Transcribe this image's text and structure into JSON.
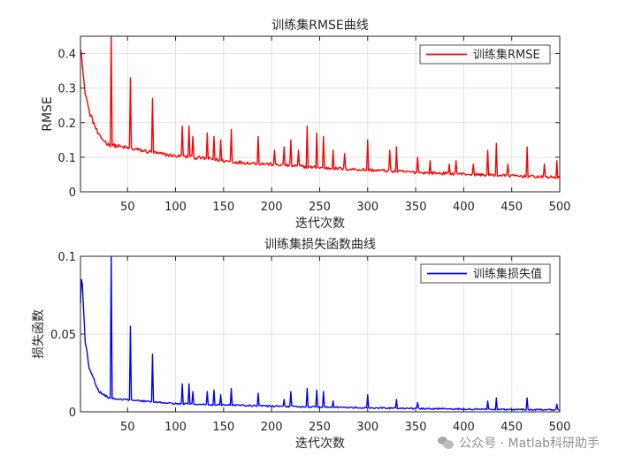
{
  "chart_data": [
    {
      "type": "line",
      "title": "训练集RMSE曲线",
      "xlabel": "迭代次数",
      "ylabel": "RMSE",
      "xlim": [
        1,
        500
      ],
      "ylim": [
        0,
        0.45
      ],
      "xticks": [
        50,
        100,
        150,
        200,
        250,
        300,
        350,
        400,
        450,
        500
      ],
      "yticks": [
        0,
        0.1,
        0.2,
        0.3,
        0.4
      ],
      "ytick_labels": [
        "0",
        "0.1",
        "0.2",
        "0.3",
        "0.4"
      ],
      "grid": true,
      "legend_position": "top-right",
      "color": "#ff0000",
      "series": [
        {
          "name": "训练集RMSE",
          "base": [
            [
              1,
              0.42
            ],
            [
              5,
              0.3
            ],
            [
              10,
              0.23
            ],
            [
              20,
              0.16
            ],
            [
              30,
              0.135
            ],
            [
              40,
              0.13
            ],
            [
              60,
              0.12
            ],
            [
              80,
              0.11
            ],
            [
              100,
              0.102
            ],
            [
              130,
              0.095
            ],
            [
              160,
              0.085
            ],
            [
              200,
              0.078
            ],
            [
              250,
              0.068
            ],
            [
              300,
              0.062
            ],
            [
              350,
              0.055
            ],
            [
              400,
              0.05
            ],
            [
              450,
              0.045
            ],
            [
              500,
              0.04
            ]
          ],
          "spikes": [
            [
              2,
              0.4
            ],
            [
              33,
              0.45
            ],
            [
              53,
              0.33
            ],
            [
              76,
              0.27
            ],
            [
              107,
              0.19
            ],
            [
              114,
              0.19
            ],
            [
              118,
              0.16
            ],
            [
              133,
              0.17
            ],
            [
              140,
              0.16
            ],
            [
              147,
              0.15
            ],
            [
              158,
              0.18
            ],
            [
              186,
              0.16
            ],
            [
              203,
              0.12
            ],
            [
              213,
              0.13
            ],
            [
              220,
              0.15
            ],
            [
              228,
              0.12
            ],
            [
              237,
              0.19
            ],
            [
              247,
              0.17
            ],
            [
              254,
              0.16
            ],
            [
              264,
              0.12
            ],
            [
              276,
              0.11
            ],
            [
              300,
              0.15
            ],
            [
              323,
              0.12
            ],
            [
              330,
              0.13
            ],
            [
              352,
              0.1
            ],
            [
              365,
              0.09
            ],
            [
              385,
              0.08
            ],
            [
              392,
              0.09
            ],
            [
              410,
              0.08
            ],
            [
              425,
              0.12
            ],
            [
              434,
              0.14
            ],
            [
              446,
              0.08
            ],
            [
              466,
              0.13
            ],
            [
              484,
              0.08
            ],
            [
              497,
              0.09
            ]
          ],
          "noise_amplitude": 0.018
        }
      ]
    },
    {
      "type": "line",
      "title": "训练集损失函数曲线",
      "xlabel": "迭代次数",
      "ylabel": "损失函数",
      "xlim": [
        1,
        500
      ],
      "ylim": [
        0,
        0.1
      ],
      "xticks": [
        50,
        100,
        150,
        200,
        250,
        300,
        350,
        400,
        450,
        500
      ],
      "yticks": [
        0,
        0.05,
        0.1
      ],
      "ytick_labels": [
        "0",
        "0.05",
        "0.1"
      ],
      "grid": true,
      "legend_position": "top-right",
      "color": "#0000ff",
      "series": [
        {
          "name": "训练集损失值",
          "base": [
            [
              1,
              0.07
            ],
            [
              3,
              0.08
            ],
            [
              6,
              0.045
            ],
            [
              10,
              0.028
            ],
            [
              20,
              0.013
            ],
            [
              30,
              0.009
            ],
            [
              40,
              0.008
            ],
            [
              60,
              0.007
            ],
            [
              80,
              0.006
            ],
            [
              100,
              0.0052
            ],
            [
              150,
              0.0043
            ],
            [
              200,
              0.0035
            ],
            [
              250,
              0.003
            ],
            [
              300,
              0.0025
            ],
            [
              350,
              0.002
            ],
            [
              400,
              0.0017
            ],
            [
              450,
              0.0014
            ],
            [
              500,
              0.0012
            ]
          ],
          "spikes": [
            [
              2,
              0.085
            ],
            [
              33,
              0.1
            ],
            [
              53,
              0.055
            ],
            [
              76,
              0.037
            ],
            [
              107,
              0.018
            ],
            [
              114,
              0.018
            ],
            [
              118,
              0.013
            ],
            [
              133,
              0.013
            ],
            [
              140,
              0.014
            ],
            [
              147,
              0.011
            ],
            [
              158,
              0.015
            ],
            [
              186,
              0.012
            ],
            [
              213,
              0.008
            ],
            [
              220,
              0.013
            ],
            [
              237,
              0.015
            ],
            [
              247,
              0.014
            ],
            [
              254,
              0.013
            ],
            [
              264,
              0.007
            ],
            [
              300,
              0.011
            ],
            [
              330,
              0.008
            ],
            [
              352,
              0.006
            ],
            [
              425,
              0.007
            ],
            [
              434,
              0.009
            ],
            [
              466,
              0.009
            ],
            [
              497,
              0.005
            ]
          ],
          "noise_amplitude": 0.0025
        }
      ]
    }
  ],
  "watermark": {
    "icon": "wechat-icon",
    "text": "公众号 · Matlab科研助手"
  }
}
